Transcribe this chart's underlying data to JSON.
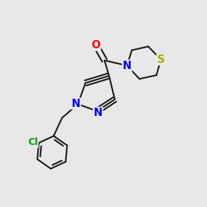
{
  "bg_color": "#e8e8e8",
  "bond_color": "#1a1a1a",
  "bond_width": 1.6,
  "atom_bg": "#e8e8e8",
  "colors": {
    "O": "#ff0000",
    "N": "#0000ee",
    "S": "#aaaa00",
    "Cl": "#00aa00",
    "C": "#1a1a1a"
  },
  "fontsize": 11
}
